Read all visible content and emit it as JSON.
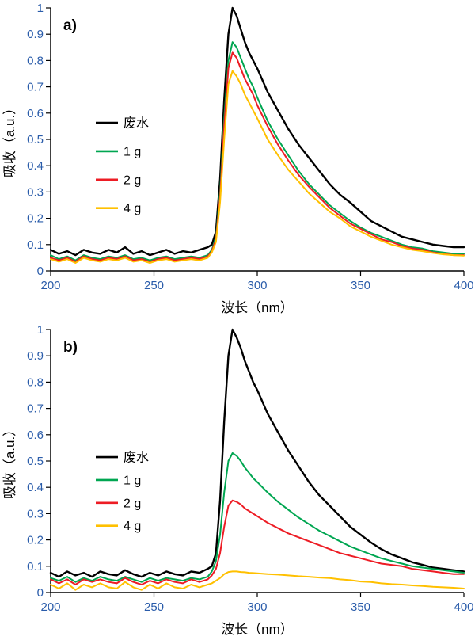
{
  "page": {
    "background": "#ffffff"
  },
  "colors": {
    "axis_line": "#000000",
    "tick_label": "#2a5caa"
  },
  "chart_data": [
    {
      "type": "line",
      "panel_label": "a)",
      "xlabel": "波长（nm）",
      "ylabel": "吸收（a.u.）",
      "xlim": [
        200,
        400
      ],
      "ylim": [
        0,
        1
      ],
      "xticks": [
        200,
        250,
        300,
        350,
        400
      ],
      "yticks": [
        0,
        0.1,
        0.2,
        0.3,
        0.4,
        0.5,
        0.6,
        0.7,
        0.8,
        0.9,
        1
      ],
      "grid": false,
      "legend": {
        "position": "inside-left",
        "first_row_f": 0.437,
        "row_gap_f": 0.108
      },
      "x": [
        200,
        204,
        208,
        212,
        216,
        220,
        224,
        228,
        232,
        236,
        240,
        244,
        248,
        252,
        256,
        260,
        264,
        268,
        272,
        276,
        278,
        280,
        282,
        284,
        286,
        288,
        290,
        292,
        294,
        296,
        298,
        300,
        305,
        310,
        315,
        320,
        325,
        330,
        335,
        340,
        345,
        350,
        355,
        360,
        365,
        370,
        375,
        380,
        385,
        390,
        395,
        400
      ],
      "series": [
        {
          "name": "废水",
          "color": "#000000",
          "width": 2.4,
          "values": [
            0.08,
            0.065,
            0.075,
            0.06,
            0.08,
            0.07,
            0.065,
            0.08,
            0.07,
            0.09,
            0.065,
            0.075,
            0.06,
            0.07,
            0.08,
            0.065,
            0.075,
            0.07,
            0.08,
            0.09,
            0.1,
            0.15,
            0.35,
            0.65,
            0.9,
            1.0,
            0.97,
            0.92,
            0.87,
            0.83,
            0.8,
            0.77,
            0.68,
            0.61,
            0.54,
            0.48,
            0.43,
            0.38,
            0.33,
            0.29,
            0.26,
            0.225,
            0.19,
            0.17,
            0.15,
            0.13,
            0.12,
            0.11,
            0.1,
            0.095,
            0.09,
            0.09
          ]
        },
        {
          "name": "1 g",
          "color": "#00a651",
          "width": 2,
          "values": [
            0.06,
            0.045,
            0.055,
            0.04,
            0.06,
            0.05,
            0.045,
            0.055,
            0.05,
            0.06,
            0.045,
            0.05,
            0.04,
            0.05,
            0.055,
            0.045,
            0.05,
            0.055,
            0.05,
            0.06,
            0.08,
            0.13,
            0.3,
            0.58,
            0.8,
            0.87,
            0.85,
            0.81,
            0.77,
            0.73,
            0.7,
            0.66,
            0.57,
            0.5,
            0.44,
            0.38,
            0.33,
            0.29,
            0.25,
            0.22,
            0.19,
            0.165,
            0.145,
            0.13,
            0.115,
            0.1,
            0.09,
            0.085,
            0.075,
            0.07,
            0.065,
            0.065
          ]
        },
        {
          "name": "2 g",
          "color": "#ed1c24",
          "width": 2,
          "values": [
            0.05,
            0.04,
            0.05,
            0.035,
            0.055,
            0.045,
            0.04,
            0.05,
            0.045,
            0.055,
            0.04,
            0.045,
            0.035,
            0.045,
            0.05,
            0.04,
            0.045,
            0.05,
            0.045,
            0.055,
            0.075,
            0.12,
            0.28,
            0.55,
            0.77,
            0.83,
            0.81,
            0.77,
            0.73,
            0.7,
            0.67,
            0.63,
            0.55,
            0.48,
            0.42,
            0.365,
            0.32,
            0.28,
            0.24,
            0.21,
            0.18,
            0.16,
            0.14,
            0.12,
            0.11,
            0.095,
            0.085,
            0.08,
            0.07,
            0.065,
            0.06,
            0.06
          ]
        },
        {
          "name": "4 g",
          "color": "#ffc000",
          "width": 2,
          "values": [
            0.045,
            0.035,
            0.045,
            0.03,
            0.05,
            0.04,
            0.035,
            0.045,
            0.04,
            0.05,
            0.035,
            0.04,
            0.03,
            0.04,
            0.045,
            0.035,
            0.04,
            0.045,
            0.04,
            0.05,
            0.07,
            0.11,
            0.26,
            0.5,
            0.71,
            0.76,
            0.74,
            0.71,
            0.67,
            0.64,
            0.61,
            0.58,
            0.5,
            0.44,
            0.385,
            0.34,
            0.295,
            0.26,
            0.225,
            0.2,
            0.17,
            0.15,
            0.13,
            0.115,
            0.1,
            0.09,
            0.08,
            0.075,
            0.068,
            0.063,
            0.06,
            0.058
          ]
        }
      ]
    },
    {
      "type": "line",
      "panel_label": "b)",
      "xlabel": "波长（nm）",
      "ylabel": "吸收（a.u.）",
      "xlim": [
        200,
        400
      ],
      "ylim": [
        0,
        1
      ],
      "xticks": [
        200,
        250,
        300,
        350,
        400
      ],
      "yticks": [
        0,
        0.1,
        0.2,
        0.3,
        0.4,
        0.5,
        0.6,
        0.7,
        0.8,
        0.9,
        1
      ],
      "grid": false,
      "legend": {
        "position": "inside-left",
        "first_row_f": 0.485,
        "row_gap_f": 0.087
      },
      "x": [
        200,
        204,
        208,
        212,
        216,
        220,
        224,
        228,
        232,
        236,
        240,
        244,
        248,
        252,
        256,
        260,
        264,
        268,
        272,
        276,
        278,
        280,
        282,
        284,
        286,
        288,
        290,
        292,
        294,
        296,
        298,
        300,
        305,
        310,
        315,
        320,
        325,
        330,
        335,
        340,
        345,
        350,
        355,
        360,
        365,
        370,
        375,
        380,
        385,
        390,
        395,
        400
      ],
      "series": [
        {
          "name": "废水",
          "color": "#000000",
          "width": 2.4,
          "values": [
            0.075,
            0.06,
            0.08,
            0.065,
            0.075,
            0.06,
            0.08,
            0.07,
            0.065,
            0.085,
            0.07,
            0.06,
            0.075,
            0.065,
            0.08,
            0.07,
            0.065,
            0.08,
            0.075,
            0.09,
            0.1,
            0.15,
            0.35,
            0.65,
            0.9,
            1.0,
            0.97,
            0.93,
            0.88,
            0.84,
            0.8,
            0.77,
            0.68,
            0.61,
            0.54,
            0.48,
            0.42,
            0.37,
            0.33,
            0.29,
            0.25,
            0.22,
            0.19,
            0.165,
            0.145,
            0.13,
            0.115,
            0.105,
            0.095,
            0.09,
            0.085,
            0.08
          ]
        },
        {
          "name": "1 g",
          "color": "#00a651",
          "width": 2,
          "values": [
            0.055,
            0.045,
            0.06,
            0.04,
            0.055,
            0.045,
            0.06,
            0.05,
            0.045,
            0.06,
            0.05,
            0.04,
            0.055,
            0.045,
            0.055,
            0.05,
            0.045,
            0.055,
            0.05,
            0.06,
            0.08,
            0.12,
            0.22,
            0.38,
            0.5,
            0.53,
            0.52,
            0.5,
            0.475,
            0.455,
            0.435,
            0.42,
            0.38,
            0.345,
            0.315,
            0.285,
            0.26,
            0.235,
            0.215,
            0.195,
            0.175,
            0.16,
            0.145,
            0.13,
            0.12,
            0.11,
            0.1,
            0.095,
            0.09,
            0.085,
            0.08,
            0.075
          ]
        },
        {
          "name": "2 g",
          "color": "#ed1c24",
          "width": 2,
          "values": [
            0.05,
            0.035,
            0.05,
            0.03,
            0.05,
            0.04,
            0.05,
            0.04,
            0.035,
            0.055,
            0.04,
            0.03,
            0.045,
            0.035,
            0.05,
            0.04,
            0.035,
            0.05,
            0.04,
            0.05,
            0.065,
            0.09,
            0.15,
            0.25,
            0.33,
            0.35,
            0.345,
            0.335,
            0.32,
            0.31,
            0.3,
            0.29,
            0.265,
            0.245,
            0.225,
            0.21,
            0.195,
            0.18,
            0.165,
            0.15,
            0.14,
            0.13,
            0.12,
            0.11,
            0.105,
            0.1,
            0.09,
            0.085,
            0.08,
            0.075,
            0.07,
            0.07
          ]
        },
        {
          "name": "4 g",
          "color": "#ffc000",
          "width": 2,
          "values": [
            0.03,
            0.015,
            0.035,
            0.01,
            0.03,
            0.02,
            0.035,
            0.02,
            0.015,
            0.04,
            0.02,
            0.01,
            0.03,
            0.015,
            0.035,
            0.02,
            0.015,
            0.03,
            0.02,
            0.03,
            0.035,
            0.045,
            0.055,
            0.07,
            0.078,
            0.08,
            0.08,
            0.078,
            0.077,
            0.075,
            0.074,
            0.073,
            0.07,
            0.068,
            0.065,
            0.062,
            0.06,
            0.057,
            0.055,
            0.05,
            0.047,
            0.042,
            0.04,
            0.035,
            0.032,
            0.03,
            0.027,
            0.025,
            0.022,
            0.02,
            0.018,
            0.015
          ]
        }
      ]
    }
  ]
}
